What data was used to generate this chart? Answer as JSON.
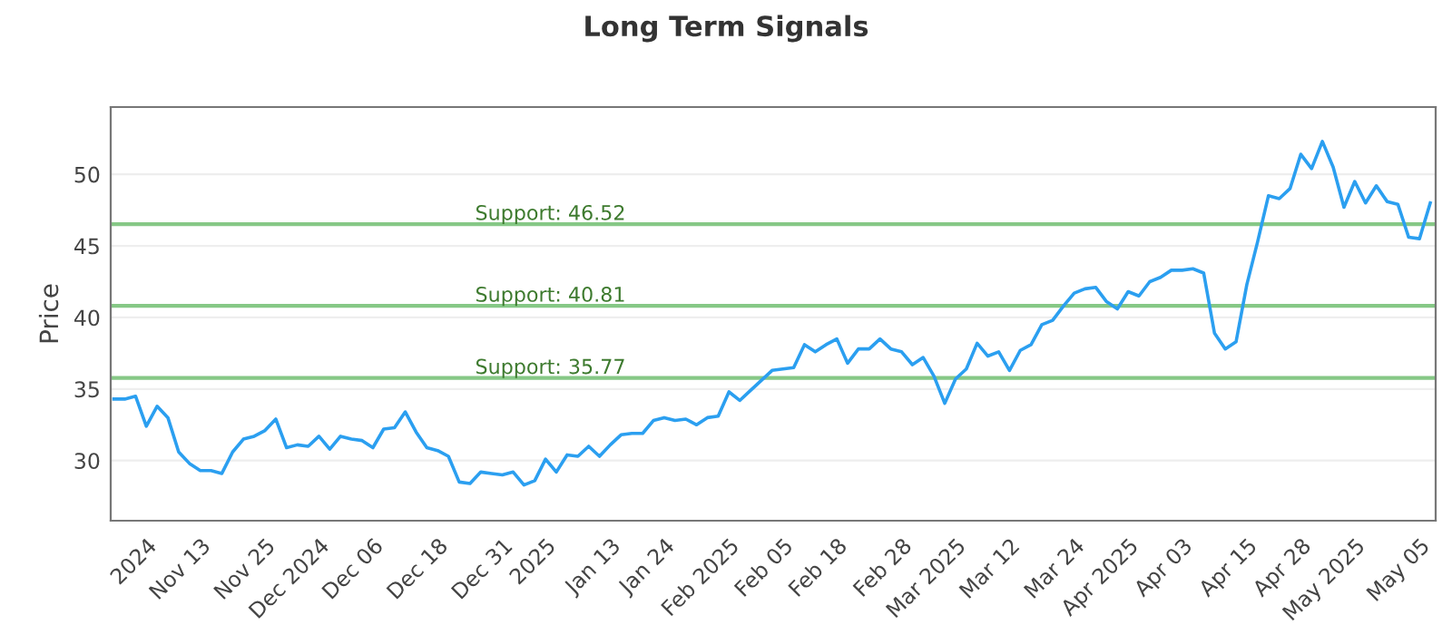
{
  "chart_data": {
    "type": "line",
    "title": "Long Term Signals",
    "ylabel": "Price",
    "categories": [
      null,
      null,
      null,
      "2024",
      null,
      null,
      null,
      null,
      "Nov 13",
      null,
      null,
      null,
      null,
      null,
      "Nov 25",
      null,
      null,
      null,
      null,
      "Dec 2024",
      null,
      null,
      null,
      null,
      "Dec 06",
      null,
      null,
      null,
      null,
      null,
      "Dec 18",
      null,
      null,
      null,
      null,
      null,
      "Dec 31",
      null,
      null,
      null,
      "2025",
      null,
      null,
      null,
      null,
      null,
      "Jan 13",
      null,
      null,
      null,
      null,
      "Jan 24",
      null,
      null,
      null,
      null,
      null,
      "Feb 2025",
      null,
      null,
      null,
      null,
      "Feb 05",
      null,
      null,
      null,
      null,
      "Feb 18",
      null,
      null,
      null,
      null,
      null,
      "Feb 28",
      null,
      null,
      null,
      null,
      "Mar 2025",
      null,
      null,
      null,
      null,
      "Mar 12",
      null,
      null,
      null,
      null,
      null,
      "Mar 24",
      null,
      null,
      null,
      null,
      "Apr 2025",
      null,
      null,
      null,
      null,
      "Apr 03",
      null,
      null,
      null,
      null,
      null,
      "Apr 15",
      null,
      null,
      null,
      null,
      "Apr 28",
      null,
      null,
      null,
      null,
      "May 2025",
      null,
      null,
      null,
      null,
      null,
      "May 05",
      null
    ],
    "series": [
      {
        "color": "#2b9ff0",
        "values": [
          34.3,
          34.3,
          34.5,
          32.4,
          33.8,
          33.0,
          30.6,
          29.8,
          29.3,
          29.3,
          29.1,
          30.6,
          31.5,
          31.7,
          32.1,
          32.9,
          30.9,
          31.1,
          31.0,
          31.7,
          30.8,
          31.7,
          31.5,
          31.4,
          30.9,
          32.2,
          32.3,
          33.4,
          32.0,
          30.9,
          30.7,
          30.3,
          28.5,
          28.4,
          29.2,
          29.1,
          29.0,
          29.2,
          28.3,
          28.6,
          30.1,
          29.2,
          30.4,
          30.3,
          31.0,
          30.3,
          31.1,
          31.8,
          31.9,
          31.9,
          32.8,
          33.0,
          32.8,
          32.9,
          32.5,
          33.0,
          33.1,
          34.8,
          34.2,
          34.9,
          35.6,
          36.3,
          36.4,
          36.5,
          38.1,
          37.6,
          38.1,
          38.5,
          36.8,
          37.8,
          37.8,
          38.5,
          37.8,
          37.6,
          36.7,
          37.2,
          35.9,
          34.0,
          35.7,
          36.4,
          38.2,
          37.3,
          37.6,
          36.3,
          37.7,
          38.1,
          39.5,
          39.8,
          40.8,
          41.7,
          42.0,
          42.1,
          41.1,
          40.6,
          41.8,
          41.5,
          42.5,
          42.8,
          43.3,
          43.3,
          43.4,
          43.1,
          38.9,
          37.8,
          38.3,
          42.3,
          45.3,
          48.5,
          48.3,
          49.0,
          51.4,
          50.4,
          52.3,
          50.5,
          47.7,
          49.5,
          48.0,
          49.2,
          48.1,
          47.9,
          45.6,
          45.5,
          48.0
        ]
      }
    ],
    "ylim": [
      25.8,
      54.7
    ],
    "yticks": [
      30,
      35,
      40,
      45,
      50
    ],
    "grid": "y",
    "marker": "none",
    "line_style": "solid",
    "ref_lines": [
      {
        "axis": "y",
        "value": 46.52,
        "label": "Support: 46.52",
        "color": "#86c886"
      },
      {
        "axis": "y",
        "value": 40.81,
        "label": "Support: 40.81",
        "color": "#86c886"
      },
      {
        "axis": "y",
        "value": 35.77,
        "label": "Support: 35.77",
        "color": "#86c886"
      }
    ]
  }
}
